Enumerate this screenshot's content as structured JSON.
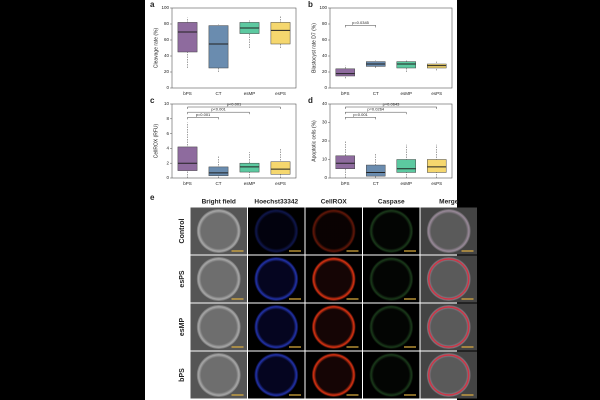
{
  "chart_data": [
    {
      "type": "box",
      "panel_label": "a",
      "ylabel": "Cleavage rate (%)",
      "categories": [
        "bPS",
        "CT",
        "esMP",
        "esPS"
      ],
      "colors": [
        "#8e6b9e",
        "#6a8caf",
        "#5cc9a0",
        "#f5d76e"
      ],
      "boxes": [
        {
          "min": 25,
          "q1": 45,
          "median": 70,
          "q3": 82,
          "max": 88
        },
        {
          "min": 20,
          "q1": 25,
          "median": 55,
          "q3": 78,
          "max": 80
        },
        {
          "min": 50,
          "q1": 68,
          "median": 75,
          "q3": 82,
          "max": 85
        },
        {
          "min": 50,
          "q1": 55,
          "median": 72,
          "q3": 82,
          "max": 90
        }
      ],
      "ylim": [
        0,
        100
      ],
      "yticks": [
        0,
        20,
        40,
        60,
        80,
        100
      ],
      "annotations": []
    },
    {
      "type": "box",
      "panel_label": "b",
      "ylabel": "Blastocyst rate D7 (%)",
      "categories": [
        "bPS",
        "CT",
        "esMP",
        "esPS"
      ],
      "colors": [
        "#8e6b9e",
        "#6a8caf",
        "#5cc9a0",
        "#f5d76e"
      ],
      "boxes": [
        {
          "min": 12,
          "q1": 15,
          "median": 18,
          "q3": 24,
          "max": 28
        },
        {
          "min": 25,
          "q1": 27,
          "median": 30,
          "q3": 33,
          "max": 35
        },
        {
          "min": 20,
          "q1": 25,
          "median": 30,
          "q3": 33,
          "max": 35
        },
        {
          "min": 22,
          "q1": 25,
          "median": 28,
          "q3": 30,
          "max": 33
        }
      ],
      "ylim": [
        0,
        100
      ],
      "yticks": [
        0,
        20,
        40,
        60,
        80,
        100
      ],
      "annotations": [
        "p=0.0345"
      ]
    },
    {
      "type": "box",
      "panel_label": "c",
      "ylabel": "CellROX (RFU)",
      "categories": [
        "bPS",
        "CT",
        "esMP",
        "esPS"
      ],
      "colors": [
        "#8e6b9e",
        "#6a8caf",
        "#5cc9a0",
        "#f5d76e"
      ],
      "boxes": [
        {
          "min": 0,
          "q1": 1,
          "median": 2,
          "q3": 4.2,
          "max": 7.5
        },
        {
          "min": 0,
          "q1": 0.3,
          "median": 0.7,
          "q3": 1.5,
          "max": 3
        },
        {
          "min": 0,
          "q1": 0.8,
          "median": 1.5,
          "q3": 2,
          "max": 3.5
        },
        {
          "min": 0,
          "q1": 0.5,
          "median": 1.2,
          "q3": 2.2,
          "max": 4
        }
      ],
      "ylim": [
        0,
        10
      ],
      "yticks": [
        0,
        2,
        4,
        6,
        8,
        10
      ],
      "annotations": [
        "p=0.001",
        "p<0.001",
        "p<0.001"
      ]
    },
    {
      "type": "box",
      "panel_label": "d",
      "ylabel": "Apoptotic cells (%)",
      "categories": [
        "bPS",
        "CT",
        "esMP",
        "esPS"
      ],
      "colors": [
        "#8e6b9e",
        "#6a8caf",
        "#5cc9a0",
        "#f5d76e"
      ],
      "boxes": [
        {
          "min": 0,
          "q1": 5,
          "median": 8,
          "q3": 12,
          "max": 20
        },
        {
          "min": 0,
          "q1": 1,
          "median": 3,
          "q3": 7,
          "max": 13
        },
        {
          "min": 0,
          "q1": 3,
          "median": 5,
          "q3": 10,
          "max": 18
        },
        {
          "min": 0,
          "q1": 3,
          "median": 6,
          "q3": 10,
          "max": 18
        }
      ],
      "ylim": [
        0,
        40
      ],
      "yticks": [
        0,
        10,
        20,
        30,
        40
      ],
      "annotations": [
        "p=0.001",
        "p=0.0264",
        "p=0.0643"
      ]
    }
  ],
  "panel_e": {
    "panel_label": "e",
    "columns": [
      "Bright field",
      "Hoechst33342",
      "CellROX",
      "Caspase",
      "Merge"
    ],
    "rows": [
      "Control",
      "esPS",
      "esMP",
      "bPS"
    ]
  }
}
